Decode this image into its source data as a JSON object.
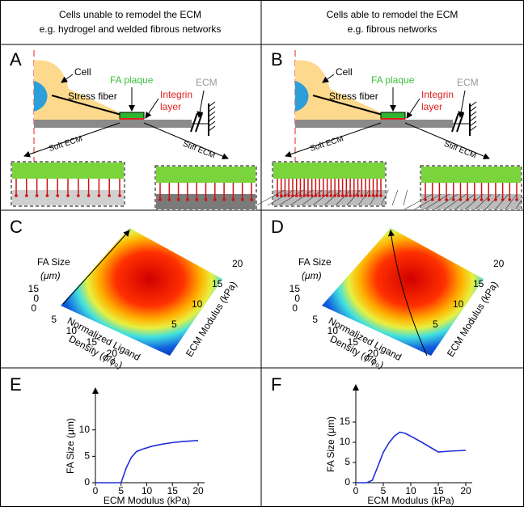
{
  "header": {
    "left": [
      "Cells unable to remodel the ECM",
      "e.g. hydrogel and welded fibrous networks"
    ],
    "right": [
      "Cells able to remodel the ECM",
      "e.g. fibrous networks"
    ]
  },
  "panels": [
    {
      "label": "A",
      "cell": "Cell",
      "stress_fiber": "Stress fiber",
      "fa_plaque": "FA plaque",
      "integrin": [
        "Integrin",
        "layer"
      ],
      "ecm": "ECM",
      "soft": "Soft ECM",
      "stiff": "Stiff ECM"
    },
    {
      "label": "B",
      "cell": "Cell",
      "stress_fiber": "Stress fiber",
      "fa_plaque": "FA plaque",
      "integrin": [
        "Integrin",
        "layer"
      ],
      "ecm": "ECM",
      "soft": "Soft ECM",
      "stiff": "Stiff ECM"
    }
  ],
  "surfaces": [
    {
      "label": "C",
      "z_label": [
        "FA Size",
        "(μm)"
      ],
      "z_ticks": [
        15,
        0
      ],
      "x_label": [
        "Normalized Ligand",
        "Density (ϕ/ϕ₀)"
      ],
      "x_ticks": [
        0,
        5,
        10,
        15,
        20
      ],
      "y_label": "ECM Modulus (kPa)",
      "y_ticks": [
        5,
        10,
        15,
        20
      ]
    },
    {
      "label": "D",
      "z_label": [
        "FA Size",
        "(μm)"
      ],
      "z_ticks": [
        15,
        0
      ],
      "x_label": [
        "Normalized Ligand",
        "Density (ϕ/ϕ₀)"
      ],
      "x_ticks": [
        0,
        5,
        10,
        15,
        20
      ],
      "y_label": "ECM Modulus (kPa)",
      "y_ticks": [
        5,
        10,
        15,
        20
      ]
    }
  ],
  "chart_data": [
    {
      "type": "line",
      "label": "E",
      "x_label": "ECM Modulus (kPa)",
      "y_label": "FA Size (μm)",
      "color": "#1f2fd8",
      "x": [
        0,
        5,
        6,
        7,
        8,
        9,
        11,
        13,
        15,
        17,
        20
      ],
      "values": [
        0,
        0,
        2.8,
        4.8,
        5.9,
        6.3,
        6.9,
        7.3,
        7.6,
        7.8,
        8
      ],
      "xlim": [
        0,
        20
      ],
      "ylim": [
        0,
        17
      ],
      "xticks": [
        0,
        5,
        10,
        15,
        20
      ],
      "yticks": [
        0,
        5,
        10
      ]
    },
    {
      "type": "line",
      "label": "F",
      "x_label": "ECM Modulus (kPa)",
      "y_label": "FA Size (μm)",
      "color": "#1f2fd8",
      "x": [
        0,
        2,
        3,
        4,
        5,
        6,
        7,
        8,
        9,
        10,
        12,
        15,
        17,
        20
      ],
      "values": [
        0,
        0,
        0.6,
        4,
        7.5,
        9.8,
        11.5,
        12.5,
        12.2,
        11.5,
        10,
        7.6,
        7.8,
        8
      ],
      "xlim": [
        0,
        20
      ],
      "ylim": [
        0,
        23
      ],
      "xticks": [
        0,
        5,
        10,
        15,
        20
      ],
      "yticks": [
        0,
        5,
        10,
        15
      ]
    }
  ]
}
